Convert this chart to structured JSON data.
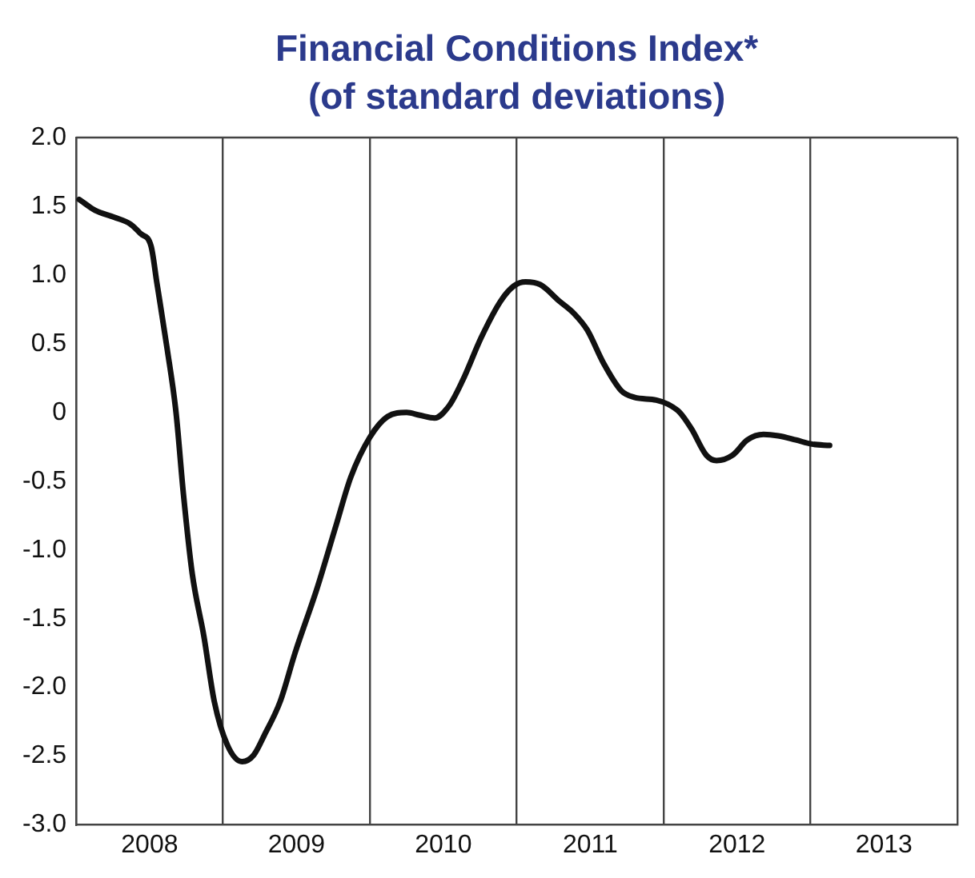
{
  "chart_data": {
    "type": "line",
    "title": "Financial Conditions Index*",
    "subtitle": "(of standard deviations)",
    "series": [
      {
        "color": "#111111",
        "x": [
          2008.02,
          2008.13,
          2008.26,
          2008.37,
          2008.44,
          2008.51,
          2008.55,
          2008.62,
          2008.68,
          2008.73,
          2008.79,
          2008.87,
          2008.94,
          2009.03,
          2009.13,
          2009.21,
          2009.28,
          2009.39,
          2009.49,
          2009.64,
          2009.77,
          2009.87,
          2010.0,
          2010.12,
          2010.25,
          2010.34,
          2010.44,
          2010.54,
          2010.63,
          2010.76,
          2010.89,
          2010.98,
          2011.06,
          2011.16,
          2011.29,
          2011.39,
          2011.48,
          2011.59,
          2011.71,
          2011.8,
          2011.95,
          2012.03,
          2012.11,
          2012.19,
          2012.29,
          2012.36,
          2012.47,
          2012.57,
          2012.68,
          2012.78,
          2012.9,
          2013.01,
          2013.13
        ],
        "values": [
          1.55,
          1.47,
          1.42,
          1.37,
          1.3,
          1.21,
          0.94,
          0.46,
          0.0,
          -0.59,
          -1.17,
          -1.63,
          -2.1,
          -2.42,
          -2.54,
          -2.49,
          -2.35,
          -2.1,
          -1.75,
          -1.28,
          -0.82,
          -0.47,
          -0.18,
          -0.03,
          0.0,
          -0.02,
          -0.04,
          0.05,
          0.23,
          0.55,
          0.81,
          0.92,
          0.95,
          0.93,
          0.81,
          0.72,
          0.6,
          0.36,
          0.16,
          0.11,
          0.09,
          0.06,
          0.0,
          -0.12,
          -0.31,
          -0.35,
          -0.31,
          -0.2,
          -0.16,
          -0.17,
          -0.2,
          -0.23,
          -0.24
        ]
      }
    ],
    "xlim": [
      2008,
      2014
    ],
    "xticks": [
      {
        "value": 2008,
        "label": null
      },
      {
        "value": 2008.5,
        "label": "2008"
      },
      {
        "value": 2009,
        "label": null
      },
      {
        "value": 2009.5,
        "label": "2009"
      },
      {
        "value": 2010,
        "label": null
      },
      {
        "value": 2010.5,
        "label": "2010"
      },
      {
        "value": 2011,
        "label": null
      },
      {
        "value": 2011.5,
        "label": "2011"
      },
      {
        "value": 2012,
        "label": null
      },
      {
        "value": 2012.5,
        "label": "2012"
      },
      {
        "value": 2013,
        "label": null
      },
      {
        "value": 2013.5,
        "label": "2013"
      },
      {
        "value": 2014,
        "label": null
      }
    ],
    "ylim": [
      -3,
      2
    ],
    "yticks": [
      {
        "value": 2,
        "label": "2.0"
      },
      1.5,
      {
        "value": 1,
        "label": "1.0"
      },
      0.5,
      0,
      -0.5,
      {
        "value": -1,
        "label": "-1.0"
      },
      -1.5,
      {
        "value": -2,
        "label": "-2.0"
      },
      -2.5,
      {
        "value": -3,
        "label": "-3.0"
      }
    ],
    "grid": "x",
    "legend": false,
    "marker": "none",
    "line_style": "solid"
  }
}
